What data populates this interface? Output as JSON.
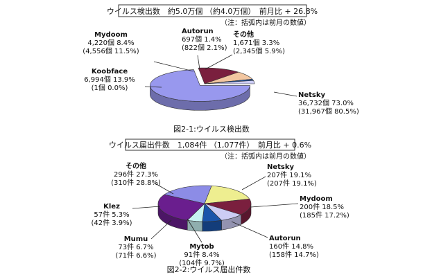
{
  "chart_data": [
    {
      "type": "pie",
      "title": "ウイルス検出数　約5.0万個 （約4.0万個）　前月比 + 26.8%",
      "note": "（注：括弧内は前月の数値）",
      "caption": "図2-1:ウイルス検出数",
      "slices": [
        {
          "name": "Netsky",
          "value": 36732,
          "count": "36,732個",
          "pct": "73.0%",
          "prev": "(31,967個 80.5%)",
          "color": "#9898ee"
        },
        {
          "name": "Koobface",
          "value": 6994,
          "count": "6,994個",
          "pct": "13.9%",
          "prev": "(1個 0.0%)",
          "color": "#7a1f3e"
        },
        {
          "name": "Mydoom",
          "value": 4220,
          "count": "4,220個",
          "pct": "8.4%",
          "prev": "(4,556個 11.5%)",
          "color": "#f2c6a0"
        },
        {
          "name": "Autorun",
          "value": 697,
          "count": "697個",
          "pct": "1.4%",
          "prev": "(822個 2.1%)",
          "color": "#1a55aa"
        },
        {
          "name": "その他",
          "value": 1671,
          "count": "1,671個",
          "pct": "3.3%",
          "prev": "(2,345個 5.9%)",
          "color": "#ccccf4"
        }
      ]
    },
    {
      "type": "pie",
      "title": "ウイルス届出件数　1,084件 （1,077件）　前月比 + 0.6%",
      "note": "（注：括弧内は前月の数値）",
      "caption": "図2-2:ウイルス届出件数",
      "slices": [
        {
          "name": "Netsky",
          "value": 207,
          "count": "207件",
          "pct": "19.1%",
          "prev": "(207件 19.1%)",
          "color": "#8c8ce6"
        },
        {
          "name": "Mydoom",
          "value": 200,
          "count": "200件",
          "pct": "18.5%",
          "prev": "(185件 17.2%)",
          "color": "#eeee90"
        },
        {
          "name": "Autorun",
          "value": 160,
          "count": "160件",
          "pct": "14.8%",
          "prev": "(158件 14.7%)",
          "color": "#7a1f3e"
        },
        {
          "name": "Mytob",
          "value": 91,
          "count": "91件",
          "pct": "8.4%",
          "prev": "(104件 9.7%)",
          "color": "#ccccf4"
        },
        {
          "name": "Mumu",
          "value": 73,
          "count": "73件",
          "pct": "6.7%",
          "prev": "(71件 6.6%)",
          "color": "#1a55aa"
        },
        {
          "name": "Klez",
          "value": 57,
          "count": "57件",
          "pct": "5.3%",
          "prev": "(42件 3.9%)",
          "color": "#c6f2f2"
        },
        {
          "name": "その他",
          "value": 296,
          "count": "296件",
          "pct": "27.3%",
          "prev": "(310件 28.8%)",
          "color": "#6a1e8e"
        }
      ]
    }
  ]
}
